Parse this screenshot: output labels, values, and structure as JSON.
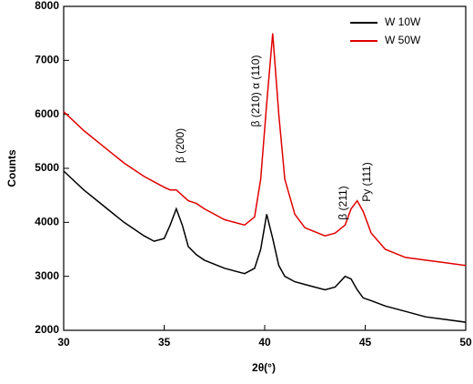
{
  "chart_data": {
    "type": "line",
    "x_label": "2θ(°)",
    "y_label": "Counts",
    "x": [
      30,
      31,
      32,
      33,
      34,
      34.5,
      35,
      35.3,
      35.6,
      35.9,
      36.2,
      36.6,
      37,
      38,
      39,
      39.5,
      39.8,
      40.1,
      40.4,
      40.7,
      41,
      41.5,
      42,
      43,
      43.5,
      44,
      44.3,
      44.6,
      44.9,
      45.3,
      46,
      47,
      48,
      49,
      50
    ],
    "series": [
      {
        "name": "W 10W",
        "color": "#000000",
        "values": [
          4950,
          4600,
          4300,
          4000,
          3750,
          3650,
          3700,
          3950,
          4250,
          3950,
          3550,
          3400,
          3300,
          3150,
          3050,
          3150,
          3500,
          4150,
          3700,
          3200,
          3000,
          2900,
          2850,
          2750,
          2800,
          3000,
          2950,
          2750,
          2600,
          2550,
          2450,
          2350,
          2250,
          2200,
          2150
        ]
      },
      {
        "name": "W 50W",
        "color": "#e00000",
        "values": [
          6050,
          5700,
          5400,
          5100,
          4850,
          4750,
          4650,
          4600,
          4600,
          4500,
          4400,
          4350,
          4250,
          4050,
          3950,
          4100,
          4800,
          6200,
          7500,
          6000,
          4800,
          4150,
          3900,
          3750,
          3800,
          3950,
          4250,
          4400,
          4200,
          3800,
          3500,
          3350,
          3300,
          3250,
          3200
        ]
      }
    ],
    "annotations": [
      "β (200)",
      "β (210) α (110)",
      "β (211)",
      "Py (111)"
    ],
    "xlim": [
      30,
      50
    ],
    "ylim": [
      2000,
      8000
    ],
    "xticks": [
      30,
      35,
      40,
      45,
      50
    ],
    "yticks": [
      2000,
      3000,
      4000,
      5000,
      6000,
      7000,
      8000
    ],
    "legend": "top-right"
  }
}
